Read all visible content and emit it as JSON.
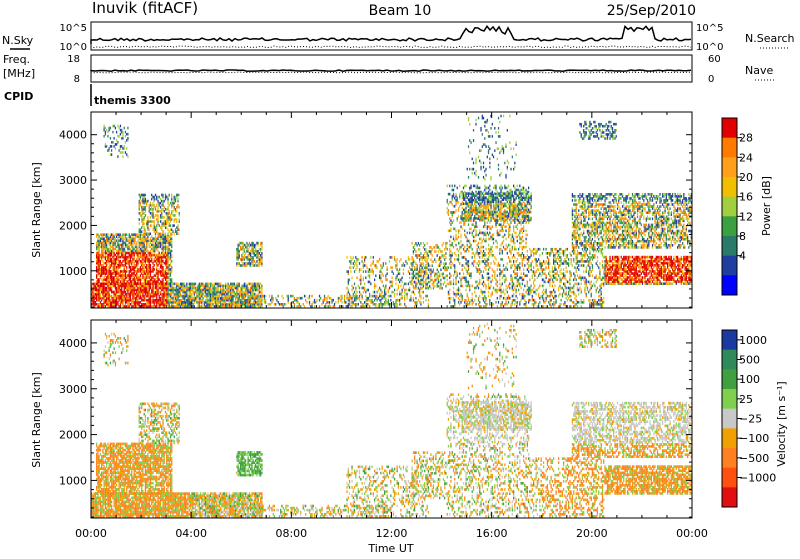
{
  "header": {
    "title": "Inuvik (fitACF)",
    "beam": "Beam 10",
    "date": "25/Sep/2010"
  },
  "status_panels": {
    "nsky_label": "N.Sky",
    "nsearch_label": "N.Search",
    "freq_label": "Freq.",
    "freq_unit": "[MHz]",
    "nave_label": "Nave",
    "cpid_label": "CPID",
    "cpid_value": "themis 3300",
    "noise_ticks_left": [
      "10^5",
      "10^0"
    ],
    "noise_ticks_right": [
      "10^5",
      "10^0"
    ],
    "freq_ticks": [
      "18",
      "8"
    ],
    "nave_ticks": [
      "60",
      "0"
    ]
  },
  "chart_data": [
    {
      "type": "heatmap",
      "name": "power",
      "xlabel": "",
      "ylabel": "Slant Range [km]",
      "x_ticks": [
        "00:00",
        "04:00",
        "08:00",
        "12:00",
        "16:00",
        "20:00",
        "00:00"
      ],
      "y_ticks": [
        "1000",
        "2000",
        "3000",
        "4000"
      ],
      "xlim_hours": [
        0,
        24
      ],
      "ylim_km": [
        180,
        4500
      ],
      "colorbar_label": "Power [dB]",
      "colorbar_ticks": [
        "28",
        "24",
        "20",
        "16",
        "12",
        "8",
        "4"
      ],
      "colors": [
        "#e00000",
        "#ff7a00",
        "#ff9f1a",
        "#f0c000",
        "#a0d040",
        "#3aa040",
        "#2a7a6a",
        "#1f3fa0",
        "#0000ff"
      ]
    },
    {
      "type": "heatmap",
      "name": "velocity",
      "xlabel": "Time UT",
      "ylabel": "Slant Range [km]",
      "x_ticks": [
        "00:00",
        "04:00",
        "08:00",
        "12:00",
        "16:00",
        "20:00",
        "00:00"
      ],
      "y_ticks": [
        "1000",
        "2000",
        "3000",
        "4000"
      ],
      "xlim_hours": [
        0,
        24
      ],
      "ylim_km": [
        180,
        4500
      ],
      "colorbar_label": "Velocity [m s⁻¹]",
      "colorbar_ticks": [
        "1000",
        "500",
        "100",
        "25",
        "−25",
        "−100",
        "−500",
        "−1000"
      ],
      "colors": [
        "#1a3aa0",
        "#2e8a5a",
        "#40a040",
        "#80d050",
        "#c8c8c8",
        "#f0a000",
        "#ff8020",
        "#ff5010",
        "#e01010"
      ]
    }
  ]
}
